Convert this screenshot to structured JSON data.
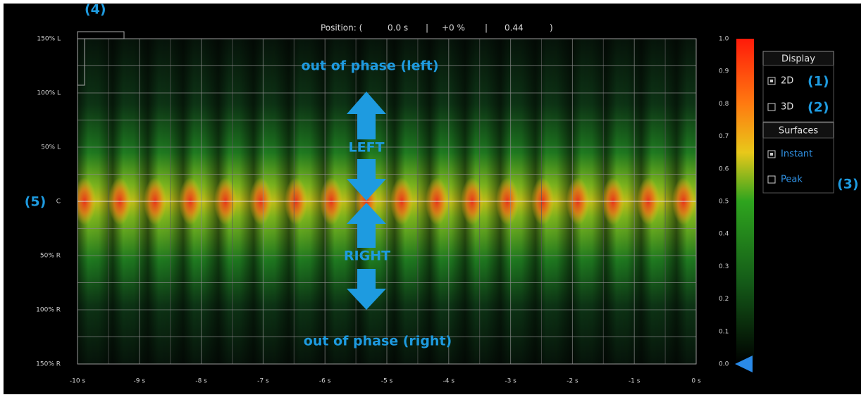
{
  "header": {
    "position_label": "Position: (",
    "time": "0.0 s",
    "sep1": "|",
    "percent": "+0 %",
    "sep2": "|",
    "value": "0.44",
    "close": ")"
  },
  "plot": {
    "y_labels": [
      "150% L",
      "100% L",
      "50% L",
      "C",
      "50% R",
      "100% R",
      "150% R"
    ],
    "x_labels": [
      "-10 s",
      "-9 s",
      "-8 s",
      "-7 s",
      "-6 s",
      "-5 s",
      "-4 s",
      "-3 s",
      "-2 s",
      "-1 s",
      "0 s"
    ]
  },
  "colorbar": {
    "labels": [
      "1.0",
      "0.9",
      "0.8",
      "0.7",
      "0.6",
      "0.5",
      "0.4",
      "0.3",
      "0.2",
      "0.1",
      "0.0"
    ]
  },
  "annotations": {
    "out_left": "out of phase (left)",
    "left": "LEFT",
    "right": "RIGHT",
    "out_right": "out of phase (right)",
    "marker_1": "(1)",
    "marker_2": "(2)",
    "marker_3": "(3)",
    "marker_4": "(4)",
    "marker_5": "(5)"
  },
  "panel": {
    "display": {
      "title": "Display",
      "items": [
        "2D",
        "3D"
      ]
    },
    "surfaces": {
      "title": "Surfaces",
      "items": [
        "Instant",
        "Peak"
      ]
    }
  }
}
